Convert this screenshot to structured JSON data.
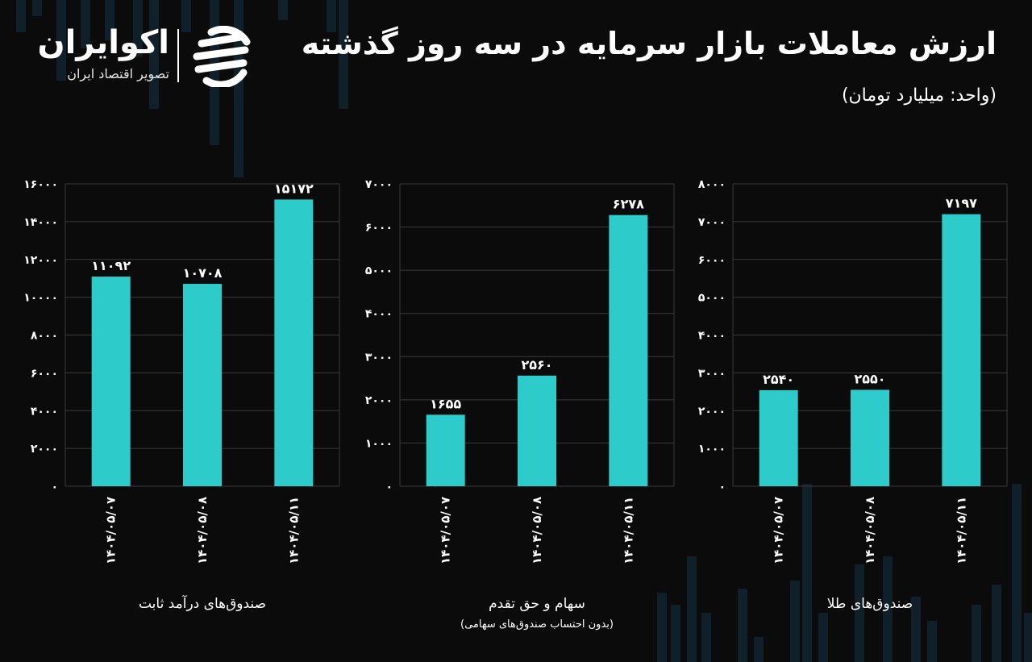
{
  "header": {
    "title": "ارزش معاملات بازار سرمایه در سه روز گذشته",
    "unit": "(واحد: میلیارد تومان)"
  },
  "logo": {
    "name": "اکوایران",
    "tagline": "تصویر اقتصاد ایران"
  },
  "colors": {
    "background": "#0b0b0b",
    "bar": "#2ecbcb",
    "text": "#ffffff",
    "grid": "#3a3a3a"
  },
  "chart_data": [
    {
      "type": "bar",
      "title": "صندوق‌های درآمد ثابت",
      "subtitle": "",
      "categories": [
        "۱۴۰۴/۰۵/۰۷",
        "۱۴۰۴/۰۵/۰۸",
        "۱۴۰۴/۰۵/۱۱"
      ],
      "values": [
        11092,
        10708,
        15172
      ],
      "value_labels": [
        "۱۱۰۹۲",
        "۱۰۷۰۸",
        "۱۵۱۷۲"
      ],
      "ylim": [
        0,
        16000
      ],
      "yticks": [
        0,
        2000,
        4000,
        6000,
        8000,
        10000,
        12000,
        14000,
        16000
      ],
      "ytick_labels": [
        "۰",
        "۲۰۰۰",
        "۴۰۰۰",
        "۶۰۰۰",
        "۸۰۰۰",
        "۱۰۰۰۰",
        "۱۲۰۰۰",
        "۱۴۰۰۰",
        "۱۶۰۰۰"
      ],
      "grid": true
    },
    {
      "type": "bar",
      "title": "سهام و حق تقدم",
      "subtitle": "(بدون احتساب صندوق‌های سهامی)",
      "categories": [
        "۱۴۰۴/۰۵/۰۷",
        "۱۴۰۴/۰۵/۰۸",
        "۱۴۰۴/۰۵/۱۱"
      ],
      "values": [
        1655,
        2560,
        6278
      ],
      "value_labels": [
        "۱۶۵۵",
        "۲۵۶۰",
        "۶۲۷۸"
      ],
      "ylim": [
        0,
        7000
      ],
      "yticks": [
        0,
        1000,
        2000,
        3000,
        4000,
        5000,
        6000,
        7000
      ],
      "ytick_labels": [
        "۰",
        "۱۰۰۰",
        "۲۰۰۰",
        "۳۰۰۰",
        "۴۰۰۰",
        "۵۰۰۰",
        "۶۰۰۰",
        "۷۰۰۰"
      ],
      "grid": true
    },
    {
      "type": "bar",
      "title": "صندوق‌های طلا",
      "subtitle": "",
      "categories": [
        "۱۴۰۴/۰۵/۰۷",
        "۱۴۰۴/۰۵/۰۸",
        "۱۴۰۴/۰۵/۱۱"
      ],
      "values": [
        2540,
        2550,
        7197
      ],
      "value_labels": [
        "۲۵۴۰",
        "۲۵۵۰",
        "۷۱۹۷"
      ],
      "ylim": [
        0,
        8000
      ],
      "yticks": [
        0,
        1000,
        2000,
        3000,
        4000,
        5000,
        6000,
        7000,
        8000
      ],
      "ytick_labels": [
        "۰",
        "۱۰۰۰",
        "۲۰۰۰",
        "۳۰۰۰",
        "۴۰۰۰",
        "۵۰۰۰",
        "۶۰۰۰",
        "۷۰۰۰",
        "۸۰۰۰"
      ],
      "grid": true
    }
  ]
}
